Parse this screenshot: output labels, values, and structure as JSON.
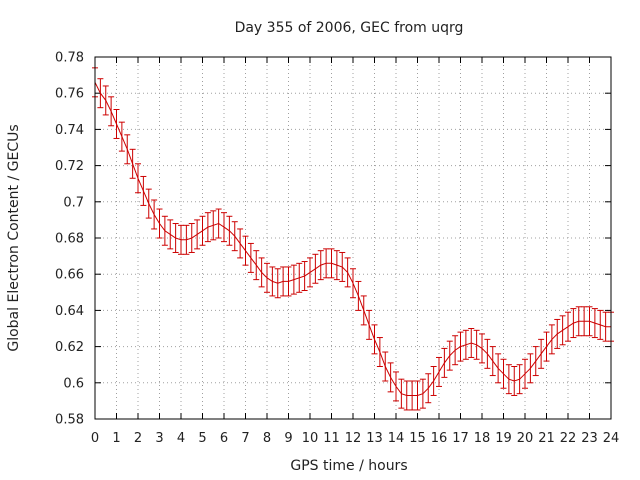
{
  "chart_data": {
    "type": "line",
    "title": "Day 355 of 2006, GEC from uqrg",
    "xlabel": "GPS time / hours",
    "ylabel": "Global Electron Content / GECUs",
    "xlim": [
      0,
      24
    ],
    "ylim": [
      0.58,
      0.78
    ],
    "xticks": [
      "0",
      "1",
      "2",
      "3",
      "4",
      "5",
      "6",
      "7",
      "8",
      "9",
      "10",
      "11",
      "12",
      "13",
      "14",
      "15",
      "16",
      "17",
      "18",
      "19",
      "20",
      "21",
      "22",
      "23",
      "24"
    ],
    "yticks": [
      "0.58",
      "0.6",
      "0.62",
      "0.64",
      "0.66",
      "0.68",
      "0.7",
      "0.72",
      "0.74",
      "0.76",
      "0.78"
    ],
    "grid": true,
    "series": [
      {
        "name": "GEC",
        "color": "#cc0000",
        "error": 0.008,
        "x": [
          0,
          0.25,
          0.5,
          0.75,
          1,
          1.25,
          1.5,
          1.75,
          2,
          2.25,
          2.5,
          2.75,
          3,
          3.25,
          3.5,
          3.75,
          4,
          4.25,
          4.5,
          4.75,
          5,
          5.25,
          5.5,
          5.75,
          6,
          6.25,
          6.5,
          6.75,
          7,
          7.25,
          7.5,
          7.75,
          8,
          8.25,
          8.5,
          8.75,
          9,
          9.25,
          9.5,
          9.75,
          10,
          10.25,
          10.5,
          10.75,
          11,
          11.25,
          11.5,
          11.75,
          12,
          12.25,
          12.5,
          12.75,
          13,
          13.25,
          13.5,
          13.75,
          14,
          14.25,
          14.5,
          14.75,
          15,
          15.25,
          15.5,
          15.75,
          16,
          16.25,
          16.5,
          16.75,
          17,
          17.25,
          17.5,
          17.75,
          18,
          18.25,
          18.5,
          18.75,
          19,
          19.25,
          19.5,
          19.75,
          20,
          20.25,
          20.5,
          20.75,
          21,
          21.25,
          21.5,
          21.75,
          22,
          22.25,
          22.5,
          22.75,
          23,
          23.25,
          23.5,
          23.75,
          24
        ],
        "values": [
          0.766,
          0.76,
          0.756,
          0.75,
          0.743,
          0.736,
          0.729,
          0.721,
          0.713,
          0.706,
          0.699,
          0.693,
          0.688,
          0.684,
          0.682,
          0.68,
          0.679,
          0.679,
          0.68,
          0.682,
          0.684,
          0.686,
          0.687,
          0.688,
          0.686,
          0.684,
          0.681,
          0.677,
          0.673,
          0.669,
          0.665,
          0.661,
          0.658,
          0.656,
          0.655,
          0.656,
          0.656,
          0.657,
          0.658,
          0.659,
          0.661,
          0.663,
          0.665,
          0.666,
          0.666,
          0.665,
          0.664,
          0.661,
          0.655,
          0.648,
          0.64,
          0.632,
          0.624,
          0.617,
          0.609,
          0.603,
          0.598,
          0.594,
          0.593,
          0.593,
          0.593,
          0.594,
          0.597,
          0.601,
          0.606,
          0.611,
          0.615,
          0.618,
          0.62,
          0.621,
          0.622,
          0.621,
          0.619,
          0.616,
          0.612,
          0.608,
          0.605,
          0.602,
          0.601,
          0.602,
          0.605,
          0.608,
          0.612,
          0.616,
          0.62,
          0.624,
          0.627,
          0.629,
          0.631,
          0.633,
          0.634,
          0.634,
          0.634,
          0.633,
          0.632,
          0.631,
          0.631
        ]
      }
    ]
  }
}
